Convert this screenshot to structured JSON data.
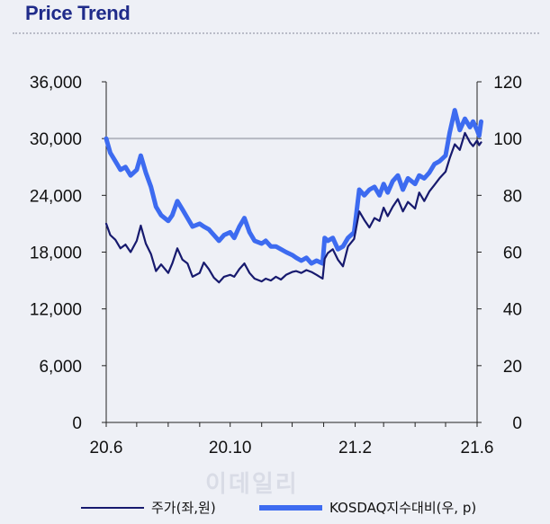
{
  "page": {
    "title": "Price Trend",
    "watermark": "이데일리"
  },
  "chart_data": {
    "type": "line",
    "x_range": [
      "2020-06",
      "2021-06"
    ],
    "x_ticks": [
      "20.6",
      "20.10",
      "21.2",
      "21.6"
    ],
    "y_left": {
      "min": 0,
      "max": 36000,
      "ticks": [
        "0",
        "6,000",
        "12,000",
        "18,000",
        "24,000",
        "30,000",
        "36,000"
      ]
    },
    "y_right": {
      "min": 0,
      "max": 120,
      "ticks": [
        "0",
        "20",
        "40",
        "60",
        "80",
        "100",
        "120"
      ]
    },
    "reference_line": {
      "axis": "right",
      "value": 100,
      "color": "#b5b8c2"
    },
    "grid": false,
    "legend_position": "bottom",
    "series": [
      {
        "name": "주가(좌,원)",
        "axis": "left",
        "color": "#171a6e",
        "points": [
          [
            "2020-06-01",
            21000
          ],
          [
            "2020-06-05",
            19800
          ],
          [
            "2020-06-10",
            19300
          ],
          [
            "2020-06-15",
            18400
          ],
          [
            "2020-06-20",
            18800
          ],
          [
            "2020-06-25",
            18000
          ],
          [
            "2020-07-01",
            19200
          ],
          [
            "2020-07-05",
            20800
          ],
          [
            "2020-07-10",
            18900
          ],
          [
            "2020-07-15",
            17800
          ],
          [
            "2020-07-20",
            16000
          ],
          [
            "2020-07-25",
            16700
          ],
          [
            "2020-08-01",
            15800
          ],
          [
            "2020-08-05",
            16800
          ],
          [
            "2020-08-10",
            18400
          ],
          [
            "2020-08-15",
            17200
          ],
          [
            "2020-08-20",
            16800
          ],
          [
            "2020-08-25",
            15400
          ],
          [
            "2020-09-01",
            15800
          ],
          [
            "2020-09-05",
            16900
          ],
          [
            "2020-09-10",
            16200
          ],
          [
            "2020-09-15",
            15300
          ],
          [
            "2020-09-20",
            14800
          ],
          [
            "2020-09-25",
            15400
          ],
          [
            "2020-10-01",
            15600
          ],
          [
            "2020-10-05",
            15400
          ],
          [
            "2020-10-10",
            16200
          ],
          [
            "2020-10-15",
            16800
          ],
          [
            "2020-10-20",
            15800
          ],
          [
            "2020-10-25",
            15200
          ],
          [
            "2020-11-01",
            14900
          ],
          [
            "2020-11-05",
            15200
          ],
          [
            "2020-11-10",
            15000
          ],
          [
            "2020-11-15",
            15400
          ],
          [
            "2020-11-20",
            15100
          ],
          [
            "2020-11-25",
            15600
          ],
          [
            "2020-12-01",
            15900
          ],
          [
            "2020-12-05",
            16000
          ],
          [
            "2020-12-10",
            15800
          ],
          [
            "2020-12-15",
            16100
          ],
          [
            "2020-12-20",
            15900
          ],
          [
            "2020-12-25",
            15600
          ],
          [
            "2020-12-31",
            15200
          ],
          [
            "2021-01-02",
            17300
          ],
          [
            "2021-01-05",
            17900
          ],
          [
            "2021-01-10",
            18300
          ],
          [
            "2021-01-15",
            17200
          ],
          [
            "2021-01-20",
            16500
          ],
          [
            "2021-01-25",
            18600
          ],
          [
            "2021-01-31",
            19400
          ],
          [
            "2021-02-05",
            22300
          ],
          [
            "2021-02-10",
            21400
          ],
          [
            "2021-02-15",
            20600
          ],
          [
            "2021-02-20",
            21600
          ],
          [
            "2021-02-25",
            21300
          ],
          [
            "2021-03-01",
            22700
          ],
          [
            "2021-03-05",
            21800
          ],
          [
            "2021-03-10",
            22800
          ],
          [
            "2021-03-15",
            23600
          ],
          [
            "2021-03-20",
            22300
          ],
          [
            "2021-03-25",
            23300
          ],
          [
            "2021-04-01",
            22600
          ],
          [
            "2021-04-05",
            24300
          ],
          [
            "2021-04-10",
            23400
          ],
          [
            "2021-04-15",
            24400
          ],
          [
            "2021-04-20",
            25100
          ],
          [
            "2021-04-25",
            25800
          ],
          [
            "2021-05-01",
            26500
          ],
          [
            "2021-05-05",
            27900
          ],
          [
            "2021-05-10",
            29400
          ],
          [
            "2021-05-15",
            28800
          ],
          [
            "2021-05-20",
            30600
          ],
          [
            "2021-05-25",
            29600
          ],
          [
            "2021-05-28",
            29200
          ],
          [
            "2021-06-01",
            29800
          ],
          [
            "2021-06-03",
            29300
          ],
          [
            "2021-06-05",
            29600
          ]
        ]
      },
      {
        "name": "KOSDAQ지수대비(우, p)",
        "axis": "right",
        "color": "#3d6bf0",
        "points": [
          [
            "2020-06-01",
            100
          ],
          [
            "2020-06-05",
            95
          ],
          [
            "2020-06-10",
            92
          ],
          [
            "2020-06-15",
            89
          ],
          [
            "2020-06-20",
            90
          ],
          [
            "2020-06-25",
            87
          ],
          [
            "2020-07-01",
            89
          ],
          [
            "2020-07-05",
            94
          ],
          [
            "2020-07-10",
            88
          ],
          [
            "2020-07-15",
            83
          ],
          [
            "2020-07-20",
            76
          ],
          [
            "2020-07-25",
            73
          ],
          [
            "2020-08-01",
            71
          ],
          [
            "2020-08-05",
            73
          ],
          [
            "2020-08-10",
            78
          ],
          [
            "2020-08-15",
            75
          ],
          [
            "2020-08-20",
            72
          ],
          [
            "2020-08-25",
            69
          ],
          [
            "2020-09-01",
            70
          ],
          [
            "2020-09-05",
            69
          ],
          [
            "2020-09-10",
            68
          ],
          [
            "2020-09-15",
            66
          ],
          [
            "2020-09-20",
            64
          ],
          [
            "2020-09-25",
            66
          ],
          [
            "2020-10-01",
            67
          ],
          [
            "2020-10-05",
            65
          ],
          [
            "2020-10-10",
            69
          ],
          [
            "2020-10-15",
            72
          ],
          [
            "2020-10-20",
            67
          ],
          [
            "2020-10-25",
            64
          ],
          [
            "2020-11-01",
            63
          ],
          [
            "2020-11-05",
            64
          ],
          [
            "2020-11-10",
            62
          ],
          [
            "2020-11-15",
            62
          ],
          [
            "2020-11-20",
            61
          ],
          [
            "2020-11-25",
            60
          ],
          [
            "2020-12-01",
            59
          ],
          [
            "2020-12-05",
            58
          ],
          [
            "2020-12-10",
            57
          ],
          [
            "2020-12-15",
            58
          ],
          [
            "2020-12-20",
            56
          ],
          [
            "2020-12-25",
            57
          ],
          [
            "2020-12-31",
            56
          ],
          [
            "2021-01-02",
            65
          ],
          [
            "2021-01-05",
            64
          ],
          [
            "2021-01-10",
            65
          ],
          [
            "2021-01-15",
            61
          ],
          [
            "2021-01-20",
            62
          ],
          [
            "2021-01-25",
            65
          ],
          [
            "2021-01-31",
            67
          ],
          [
            "2021-02-05",
            82
          ],
          [
            "2021-02-10",
            80
          ],
          [
            "2021-02-15",
            82
          ],
          [
            "2021-02-20",
            83
          ],
          [
            "2021-02-25",
            80
          ],
          [
            "2021-03-01",
            84
          ],
          [
            "2021-03-05",
            81
          ],
          [
            "2021-03-10",
            85
          ],
          [
            "2021-03-15",
            87
          ],
          [
            "2021-03-20",
            82
          ],
          [
            "2021-03-25",
            86
          ],
          [
            "2021-04-01",
            84
          ],
          [
            "2021-04-05",
            87
          ],
          [
            "2021-04-10",
            86
          ],
          [
            "2021-04-15",
            88
          ],
          [
            "2021-04-20",
            91
          ],
          [
            "2021-04-25",
            92
          ],
          [
            "2021-05-01",
            94
          ],
          [
            "2021-05-05",
            102
          ],
          [
            "2021-05-10",
            110
          ],
          [
            "2021-05-15",
            103
          ],
          [
            "2021-05-20",
            107
          ],
          [
            "2021-05-25",
            104
          ],
          [
            "2021-05-28",
            106
          ],
          [
            "2021-06-01",
            103
          ],
          [
            "2021-06-03",
            101
          ],
          [
            "2021-06-05",
            106
          ]
        ]
      }
    ]
  }
}
